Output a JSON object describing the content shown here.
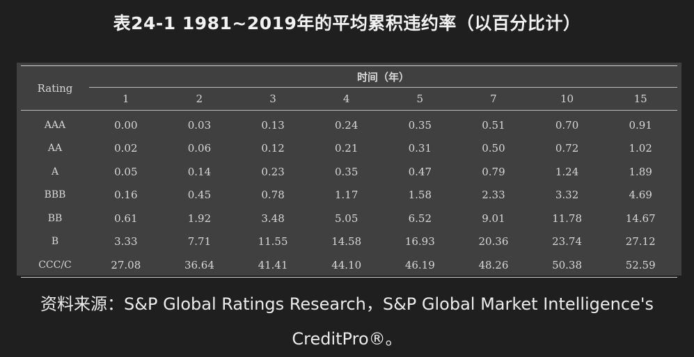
{
  "title": "表24-1 1981~2019年的平均累积违约率（以百分比计）",
  "table": {
    "rating_header": "Rating",
    "group_header": "时间（年）",
    "years": [
      "1",
      "2",
      "3",
      "4",
      "5",
      "7",
      "10",
      "15"
    ],
    "rows": [
      {
        "rating": "AAA",
        "values": [
          "0.00",
          "0.03",
          "0.13",
          "0.24",
          "0.35",
          "0.51",
          "0.70",
          "0.91"
        ]
      },
      {
        "rating": "AA",
        "values": [
          "0.02",
          "0.06",
          "0.12",
          "0.21",
          "0.31",
          "0.50",
          "0.72",
          "1.02"
        ]
      },
      {
        "rating": "A",
        "values": [
          "0.05",
          "0.14",
          "0.23",
          "0.35",
          "0.47",
          "0.79",
          "1.24",
          "1.89"
        ]
      },
      {
        "rating": "BBB",
        "values": [
          "0.16",
          "0.45",
          "0.78",
          "1.17",
          "1.58",
          "2.33",
          "3.32",
          "4.69"
        ]
      },
      {
        "rating": "BB",
        "values": [
          "0.61",
          "1.92",
          "3.48",
          "5.05",
          "6.52",
          "9.01",
          "11.78",
          "14.67"
        ]
      },
      {
        "rating": "B",
        "values": [
          "3.33",
          "7.71",
          "11.55",
          "14.58",
          "16.93",
          "20.36",
          "23.74",
          "27.12"
        ]
      },
      {
        "rating": "CCC/C",
        "values": [
          "27.08",
          "36.64",
          "41.41",
          "44.10",
          "46.19",
          "48.26",
          "50.38",
          "52.59"
        ]
      }
    ]
  },
  "source_line1": "资料来源：S&P Global Ratings Research，S&P Global Market Intelligence's",
  "source_line2": "CreditPro®。"
}
